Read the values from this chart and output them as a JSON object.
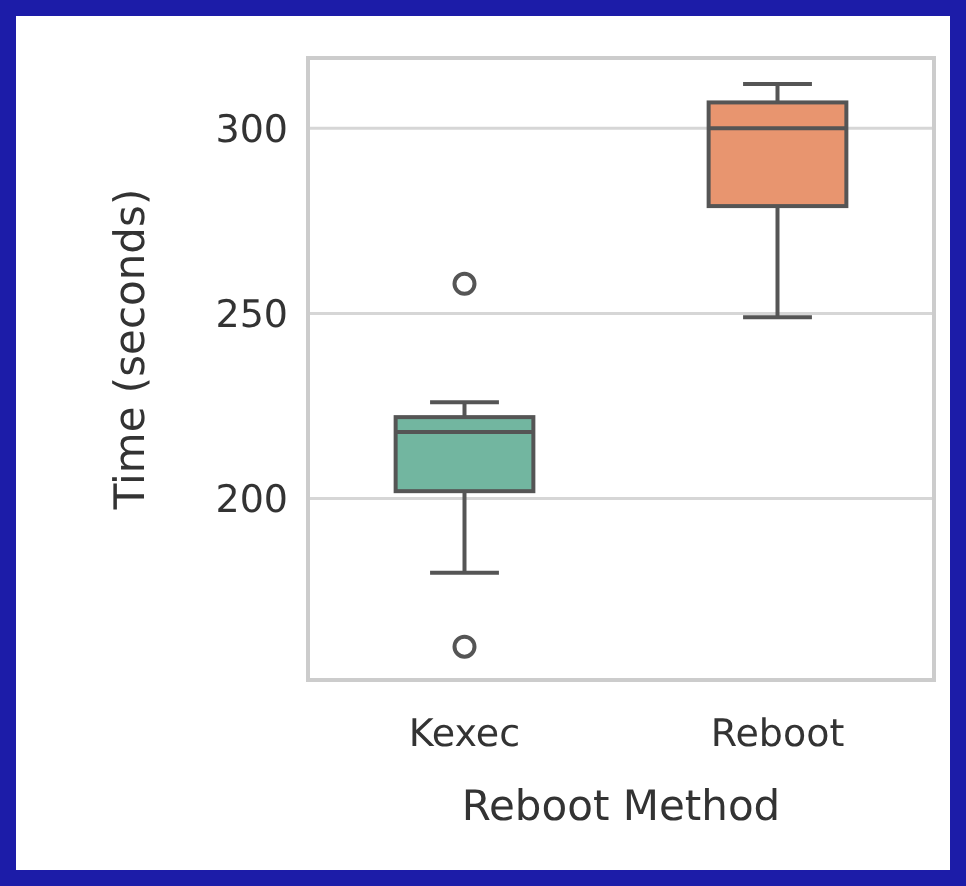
{
  "chart_data": {
    "type": "box",
    "xlabel": "Reboot Method",
    "ylabel": "Time (seconds)",
    "categories": [
      "Kexec",
      "Reboot"
    ],
    "colors": [
      "#72b6a0",
      "#e8956f"
    ],
    "boxes": [
      {
        "low": 180,
        "q1": 202,
        "median": 218,
        "q3": 222,
        "high": 226,
        "outliers": [
          258,
          160
        ]
      },
      {
        "low": 249,
        "q1": 279,
        "median": 300,
        "q3": 307,
        "high": 312
      }
    ],
    "ylim": [
      151,
      319
    ],
    "yticks": [
      200,
      250,
      300
    ],
    "grid": "y"
  }
}
